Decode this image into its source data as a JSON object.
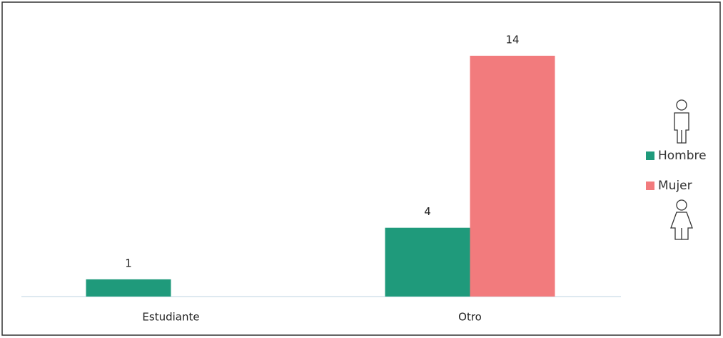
{
  "chart_data": {
    "type": "bar",
    "categories": [
      "Estudiante",
      "Otro"
    ],
    "series": [
      {
        "name": "Hombre",
        "color": "#1f9a7b",
        "values": [
          1,
          4
        ]
      },
      {
        "name": "Mujer",
        "color": "#f27b7d",
        "values": [
          null,
          14
        ]
      }
    ],
    "legend": "right"
  }
}
